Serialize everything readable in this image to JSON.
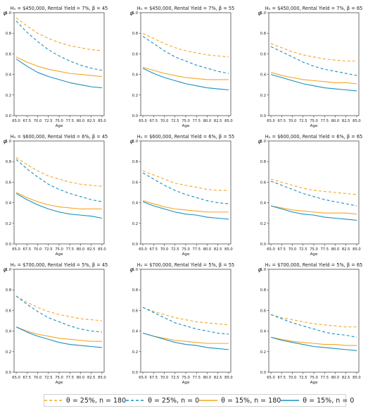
{
  "chart_data": {
    "type": "line",
    "x": [
      65,
      67.5,
      70,
      72.5,
      75,
      77.5,
      80,
      82.5,
      85
    ],
    "xlabel": "Age",
    "ylabel": "φ",
    "ylim": [
      0.0,
      1.0
    ],
    "xlim": [
      64.5,
      85.5
    ],
    "xtick_labels": [
      "65.0",
      "67.5",
      "70.0",
      "72.5",
      "75.0",
      "77.5",
      "80.0",
      "82.5",
      "85.0"
    ],
    "ytick_labels": [
      "0.0",
      "0.2",
      "0.4",
      "0.6",
      "0.8",
      "1.0"
    ],
    "colors": {
      "orange": "#f5a623",
      "teal": "#1a8fc0"
    },
    "legend": {
      "placement": "bottom",
      "entries": [
        {
          "label": "θ = 25%, n = 180",
          "color": "#f5a623",
          "dash": true
        },
        {
          "label": "θ = 25%, n = 0",
          "color": "#1a8fc0",
          "dash": true
        },
        {
          "label": "θ = 15%, n = 180",
          "color": "#f5a623",
          "dash": false
        },
        {
          "label": "θ = 15%, n = 0",
          "color": "#1a8fc0",
          "dash": false
        }
      ]
    },
    "panels": [
      {
        "title": "H₀ = $450,000, Rental Yield = 7%, β = 45",
        "series": [
          {
            "values": [
              0.95,
              0.87,
              0.8,
              0.75,
              0.71,
              0.68,
              0.66,
              0.64,
              0.63
            ]
          },
          {
            "values": [
              0.92,
              0.81,
              0.72,
              0.64,
              0.58,
              0.53,
              0.49,
              0.46,
              0.44
            ]
          },
          {
            "values": [
              0.57,
              0.52,
              0.48,
              0.45,
              0.43,
              0.41,
              0.4,
              0.39,
              0.38
            ]
          },
          {
            "values": [
              0.55,
              0.48,
              0.42,
              0.38,
              0.35,
              0.32,
              0.3,
              0.28,
              0.27
            ]
          }
        ]
      },
      {
        "title": "H₀ = $450,000, Rental Yield = 7%, β = 55",
        "series": [
          {
            "values": [
              0.8,
              0.75,
              0.7,
              0.66,
              0.63,
              0.61,
              0.59,
              0.58,
              0.57
            ]
          },
          {
            "values": [
              0.77,
              0.7,
              0.63,
              0.57,
              0.53,
              0.49,
              0.46,
              0.43,
              0.41
            ]
          },
          {
            "values": [
              0.47,
              0.44,
              0.41,
              0.39,
              0.37,
              0.36,
              0.35,
              0.35,
              0.35
            ]
          },
          {
            "values": [
              0.46,
              0.41,
              0.37,
              0.34,
              0.31,
              0.29,
              0.27,
              0.26,
              0.25
            ]
          }
        ]
      },
      {
        "title": "H₀ = $450,000, Rental Yield = 7%, β = 65",
        "series": [
          {
            "values": [
              0.7,
              0.66,
              0.62,
              0.59,
              0.57,
              0.55,
              0.54,
              0.53,
              0.53
            ]
          },
          {
            "values": [
              0.67,
              0.62,
              0.57,
              0.52,
              0.48,
              0.45,
              0.43,
              0.41,
              0.39
            ]
          },
          {
            "values": [
              0.42,
              0.39,
              0.37,
              0.35,
              0.34,
              0.33,
              0.32,
              0.32,
              0.31
            ]
          },
          {
            "values": [
              0.4,
              0.37,
              0.34,
              0.31,
              0.29,
              0.27,
              0.26,
              0.25,
              0.24
            ]
          }
        ]
      },
      {
        "title": "H₀ = $600,000, Rental Yield = 6%, β = 45",
        "series": [
          {
            "values": [
              0.84,
              0.77,
              0.71,
              0.66,
              0.63,
              0.6,
              0.58,
              0.57,
              0.56
            ]
          },
          {
            "values": [
              0.82,
              0.73,
              0.65,
              0.58,
              0.53,
              0.49,
              0.46,
              0.43,
              0.41
            ]
          },
          {
            "values": [
              0.5,
              0.45,
              0.41,
              0.38,
              0.36,
              0.35,
              0.34,
              0.34,
              0.34
            ]
          },
          {
            "values": [
              0.49,
              0.43,
              0.38,
              0.34,
              0.31,
              0.29,
              0.28,
              0.27,
              0.25
            ]
          }
        ]
      },
      {
        "title": "H₀ = $600,000, Rental Yield = 6%, β = 55",
        "series": [
          {
            "values": [
              0.71,
              0.67,
              0.63,
              0.59,
              0.57,
              0.55,
              0.53,
              0.52,
              0.52
            ]
          },
          {
            "values": [
              0.69,
              0.63,
              0.57,
              0.52,
              0.48,
              0.45,
              0.42,
              0.4,
              0.39
            ]
          },
          {
            "values": [
              0.42,
              0.39,
              0.36,
              0.34,
              0.33,
              0.32,
              0.31,
              0.31,
              0.31
            ]
          },
          {
            "values": [
              0.41,
              0.37,
              0.34,
              0.31,
              0.29,
              0.28,
              0.26,
              0.25,
              0.24
            ]
          }
        ]
      },
      {
        "title": "H₀ = $600,000, Rental Yield = 6%, β = 65",
        "series": [
          {
            "values": [
              0.63,
              0.6,
              0.57,
              0.54,
              0.52,
              0.51,
              0.5,
              0.49,
              0.48
            ]
          },
          {
            "values": [
              0.61,
              0.57,
              0.53,
              0.49,
              0.46,
              0.43,
              0.41,
              0.39,
              0.37
            ]
          },
          {
            "values": [
              0.37,
              0.35,
              0.33,
              0.32,
              0.31,
              0.3,
              0.3,
              0.3,
              0.29
            ]
          },
          {
            "values": [
              0.37,
              0.34,
              0.31,
              0.29,
              0.28,
              0.26,
              0.25,
              0.24,
              0.23
            ]
          }
        ]
      },
      {
        "title": "H₀ = $700,000, Rental Yield = 5%, β = 45",
        "series": [
          {
            "values": [
              0.74,
              0.68,
              0.63,
              0.59,
              0.56,
              0.54,
              0.52,
              0.51,
              0.5
            ]
          },
          {
            "values": [
              0.74,
              0.66,
              0.59,
              0.53,
              0.49,
              0.45,
              0.42,
              0.4,
              0.39
            ]
          },
          {
            "values": [
              0.44,
              0.4,
              0.37,
              0.35,
              0.33,
              0.32,
              0.31,
              0.3,
              0.3
            ]
          },
          {
            "values": [
              0.44,
              0.39,
              0.35,
              0.32,
              0.29,
              0.27,
              0.26,
              0.25,
              0.24
            ]
          }
        ]
      },
      {
        "title": "H₀ = $700,000, Rental Yield = 5%, β = 55",
        "series": [
          {
            "values": [
              0.63,
              0.59,
              0.56,
              0.53,
              0.51,
              0.49,
              0.48,
              0.47,
              0.46
            ]
          },
          {
            "values": [
              0.63,
              0.58,
              0.53,
              0.48,
              0.45,
              0.42,
              0.4,
              0.38,
              0.37
            ]
          },
          {
            "values": [
              0.38,
              0.35,
              0.33,
              0.31,
              0.3,
              0.29,
              0.28,
              0.28,
              0.28
            ]
          },
          {
            "values": [
              0.38,
              0.35,
              0.32,
              0.29,
              0.27,
              0.26,
              0.24,
              0.23,
              0.22
            ]
          }
        ]
      },
      {
        "title": "H₀ = $700,000, Rental Yield = 5%, β = 65",
        "series": [
          {
            "values": [
              0.56,
              0.53,
              0.51,
              0.49,
              0.47,
              0.46,
              0.45,
              0.44,
              0.44
            ]
          },
          {
            "values": [
              0.56,
              0.52,
              0.48,
              0.45,
              0.42,
              0.39,
              0.37,
              0.36,
              0.34
            ]
          },
          {
            "values": [
              0.34,
              0.32,
              0.3,
              0.29,
              0.28,
              0.27,
              0.27,
              0.26,
              0.26
            ]
          },
          {
            "values": [
              0.34,
              0.31,
              0.29,
              0.27,
              0.25,
              0.24,
              0.23,
              0.22,
              0.21
            ]
          }
        ]
      }
    ]
  }
}
